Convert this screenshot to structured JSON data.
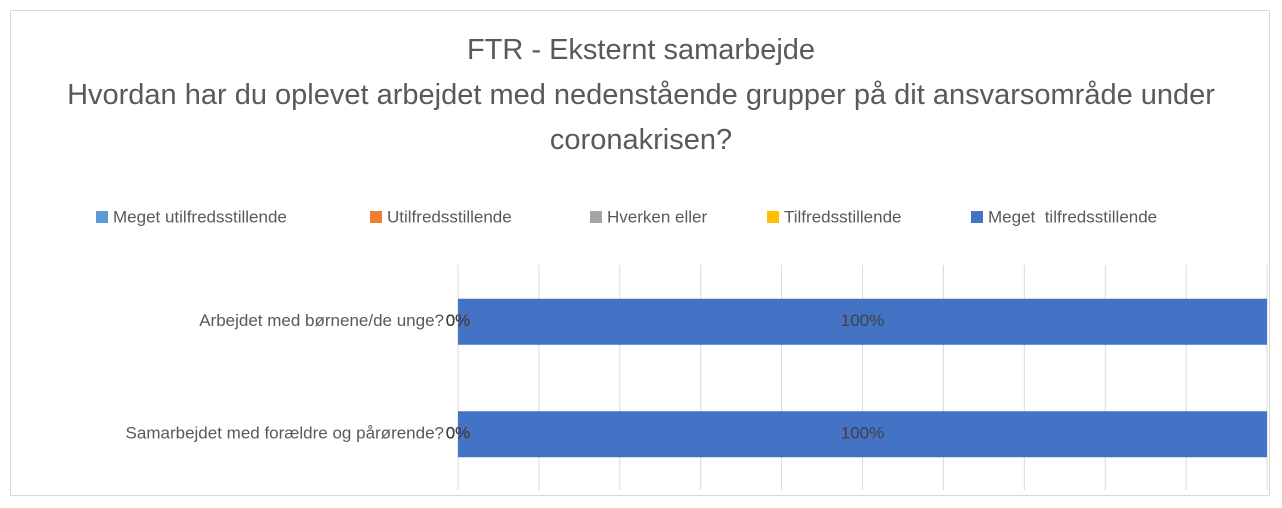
{
  "chart_data": {
    "type": "stacked_barh",
    "title": "FTR - Eksternt samarbejde",
    "subtitle": "Hvordan har du oplevet arbejdet med nedenstående grupper på dit ansvarsområde under coronakrisen?",
    "categories": [
      "Arbejdet med børnene/de unge?",
      "Samarbejdet med forældre og pårørende?"
    ],
    "series": [
      {
        "name": "Meget utilfredsstillende",
        "color": "#5b9bd5",
        "values": [
          0,
          0
        ],
        "value_labels": [
          "0%",
          "0%"
        ]
      },
      {
        "name": "Utilfredsstillende",
        "color": "#ed7d31",
        "values": [
          0,
          0
        ],
        "value_labels": [
          "0%",
          "0%"
        ]
      },
      {
        "name": "Hverken eller",
        "color": "#a5a5a5",
        "values": [
          0,
          0
        ],
        "value_labels": [
          "0%",
          "0%"
        ]
      },
      {
        "name": "Tilfredsstillende",
        "color": "#ffc000",
        "values": [
          0,
          0
        ],
        "value_labels": [
          "0%",
          "0%"
        ]
      },
      {
        "name": "Meget  tilfredsstillende",
        "color": "#4472c4",
        "values": [
          100,
          100
        ],
        "value_labels": [
          "100%",
          "100%"
        ]
      }
    ],
    "xlim": [
      0,
      100
    ],
    "xticks": [
      0,
      10,
      20,
      30,
      40,
      50,
      60,
      70,
      80,
      90,
      100
    ],
    "grid": true,
    "legend": "top"
  }
}
